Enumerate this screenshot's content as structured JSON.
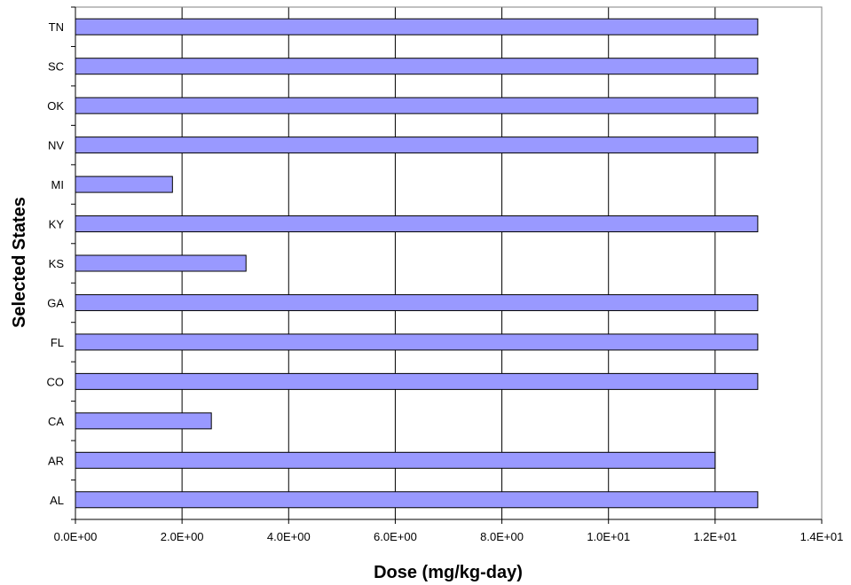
{
  "chart_data": {
    "type": "bar",
    "orientation": "horizontal",
    "title": "",
    "xlabel": "Dose (mg/kg-day)",
    "ylabel": "Selected States",
    "xlim": [
      0,
      14
    ],
    "x_ticks": [
      0,
      2,
      4,
      6,
      8,
      10,
      12,
      14
    ],
    "x_tick_labels": [
      "0.0E+00",
      "2.0E+00",
      "4.0E+00",
      "6.0E+00",
      "8.0E+00",
      "1.0E+01",
      "1.2E+01",
      "1.4E+01"
    ],
    "categories": [
      "AL",
      "AR",
      "CA",
      "CO",
      "FL",
      "GA",
      "KS",
      "KY",
      "MI",
      "NV",
      "OK",
      "SC",
      "TN"
    ],
    "values": [
      12.8,
      12.0,
      2.55,
      12.8,
      12.8,
      12.8,
      3.2,
      12.8,
      1.82,
      12.8,
      12.8,
      12.8,
      12.8
    ],
    "bar_color": "#9999FF",
    "bar_edge_color": "#000000",
    "grid": "vertical major gridlines",
    "legend": "none"
  }
}
